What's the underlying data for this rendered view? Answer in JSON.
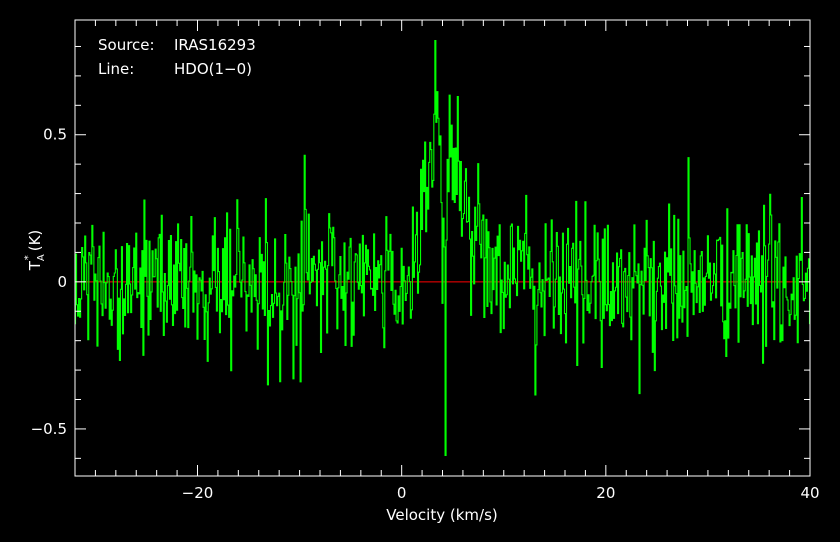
{
  "chart_data": {
    "type": "line",
    "annotations": [
      {
        "key": "Source:",
        "value": "IRAS16293"
      },
      {
        "key": "Line:",
        "value": "HDO(1−0)"
      }
    ],
    "xlabel": "Velocity (km/s)",
    "ylabel_main": "T",
    "ylabel_sub": "A",
    "ylabel_sup": "*",
    "ylabel_unit": "(K)",
    "xlim": [
      -32,
      40
    ],
    "ylim": [
      -0.66,
      0.89
    ],
    "xticks": [
      {
        "value": -20,
        "label": "−20"
      },
      {
        "value": 0,
        "label": "0"
      },
      {
        "value": 20,
        "label": "20"
      },
      {
        "value": 40,
        "label": "40"
      }
    ],
    "yticks": [
      {
        "value": -0.5,
        "label": "−0.5"
      },
      {
        "value": 0,
        "label": "0"
      },
      {
        "value": 0.5,
        "label": "0.5"
      }
    ],
    "x_minor_step": 2,
    "y_minor_step": 0.1,
    "baseline": 0,
    "grid": false,
    "colors": {
      "background": "#000000",
      "frame": "#ffffff",
      "spectrum": "#00ff00",
      "baseline": "#ff0000",
      "text": "#ffffff"
    },
    "series": [
      {
        "channel_width": 0.1,
        "x_start": -32,
        "x_end": 40,
        "noise_rms": 0.12,
        "features": [
          {
            "type": "emission",
            "center": 3.8,
            "amplitude": 0.52,
            "fwhm": 2.6
          },
          {
            "type": "emission",
            "center": 5.8,
            "amplitude": 0.18,
            "fwhm": 6.0
          },
          {
            "type": "absorption",
            "center": 4.2,
            "amplitude": -0.62,
            "fwhm": 0.6
          }
        ],
        "notable_points": [
          {
            "x": 3.3,
            "y": 0.82
          },
          {
            "x": 4.3,
            "y": -0.59
          },
          {
            "x": 5.5,
            "y": 0.63
          },
          {
            "x": -9.5,
            "y": 0.43
          },
          {
            "x": -9.9,
            "y": -0.34
          },
          {
            "x": -13.1,
            "y": -0.35
          },
          {
            "x": 23.3,
            "y": -0.38
          }
        ]
      }
    ]
  }
}
